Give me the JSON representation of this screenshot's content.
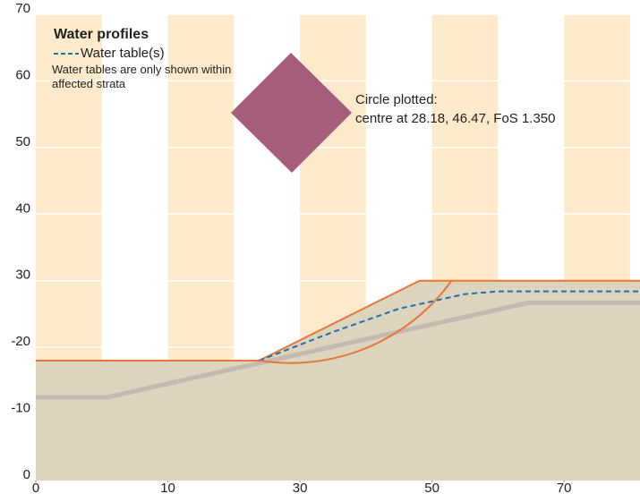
{
  "chart_data": {
    "type": "line",
    "title": "Water profiles",
    "note": "Water tables are only shown within affected strata",
    "annotation": [
      "Circle plotted:",
      "centre at 28.18, 46.47, FoS 1.350"
    ],
    "xlim": [
      0,
      91.5
    ],
    "ylim": [
      0,
      70
    ],
    "xticks": [
      0,
      {
        "value": 20,
        "label": "10"
      },
      {
        "value": 40,
        "label": "30"
      },
      {
        "value": 60,
        "label": "50"
      },
      {
        "value": 80,
        "label": "70"
      }
    ],
    "yticks": [
      0,
      {
        "value": 10,
        "label": "-10"
      },
      {
        "value": 20,
        "label": "-20"
      },
      30,
      40,
      50,
      60,
      70
    ],
    "grid": true,
    "ground": {
      "color": "#e8773a",
      "fill": "#ddd4bd",
      "x": [
        0,
        33.8,
        58.1,
        91.5
      ],
      "values": [
        18,
        18,
        30,
        30
      ]
    },
    "bedrock": {
      "color": "#c7b9b1",
      "x": [
        0,
        10.8,
        74.6,
        91.5
      ],
      "values": [
        12.5,
        12.5,
        26.7,
        26.7
      ]
    },
    "series": [
      {
        "name": "Water table(s)",
        "color": "#1f6fb5",
        "x": [
          33.8,
          45,
          55,
          65,
          70,
          91.5
        ],
        "values": [
          18,
          22.3,
          25.8,
          28,
          28.4,
          28.4
        ]
      }
    ]
  }
}
